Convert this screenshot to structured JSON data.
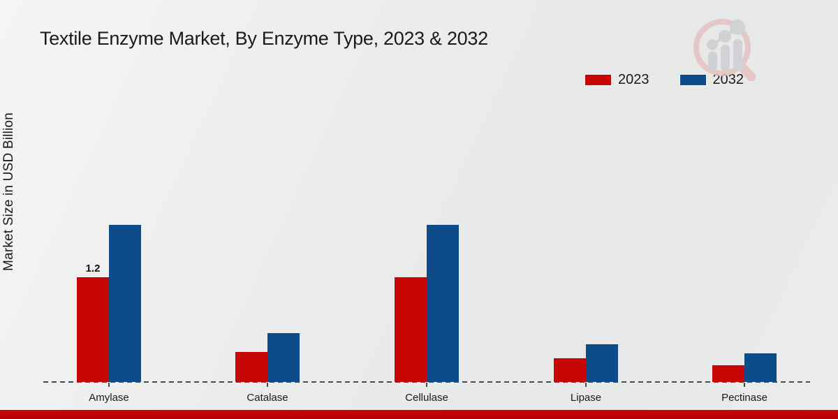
{
  "chart_data": {
    "type": "bar",
    "title": "Textile Enzyme Market, By Enzyme Type, 2023 & 2032",
    "ylabel": "Market Size in USD Billion",
    "xlabel": "",
    "categories": [
      "Amylase",
      "Catalase",
      "Cellulase",
      "Lipase",
      "Pectinase"
    ],
    "series": [
      {
        "name": "2023",
        "color": "#c90606",
        "values": [
          1.2,
          0.34,
          1.2,
          0.27,
          0.19
        ],
        "data_labels": [
          "1.2",
          "",
          "",
          "",
          ""
        ]
      },
      {
        "name": "2032",
        "color": "#0d4c88",
        "values": [
          1.8,
          0.56,
          1.8,
          0.43,
          0.33
        ],
        "data_labels": [
          "",
          "",
          "",
          "",
          ""
        ]
      }
    ],
    "ylim": [
      0,
      2
    ],
    "grid": false,
    "legend_position": "top-right",
    "baseline_style": "dashed",
    "y_axis_ticks_visible": false
  },
  "legend": {
    "items": [
      {
        "label": "2023",
        "color": "#c90606"
      },
      {
        "label": "2032",
        "color": "#0d4c88"
      }
    ]
  },
  "footer": {
    "accent_color": "#c40505"
  },
  "icons": {
    "watermark": "magnifier-bar-chart-logo"
  }
}
